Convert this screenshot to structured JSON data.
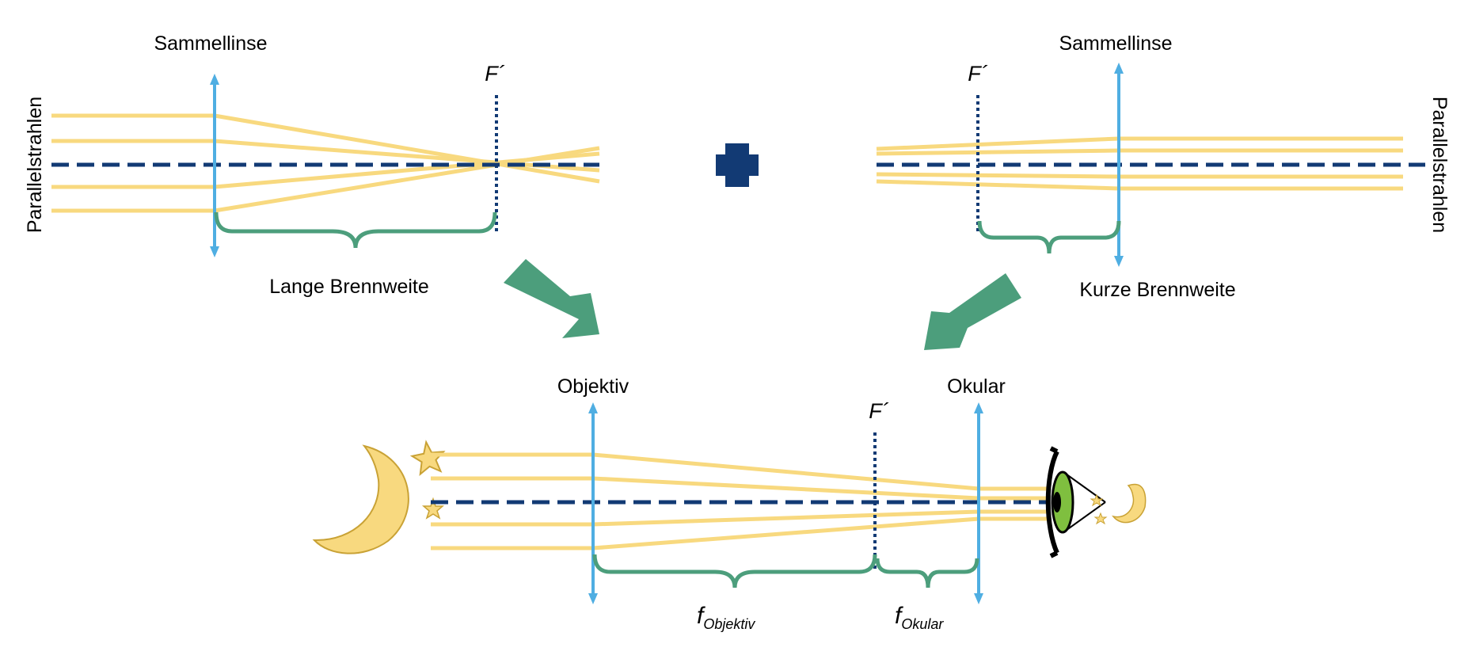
{
  "colors": {
    "ray": "#F8D97F",
    "lens": "#4FAEE2",
    "axis": "#123A74",
    "brace": "#4C9E7C",
    "arrow": "#4C9E7C",
    "plus": "#123A74",
    "moon_fill": "#F8D97F",
    "moon_stroke": "#C9A235",
    "iris": "#7FBF3F"
  },
  "icons": {
    "plus": "plus-icon",
    "moon": "moon-icon",
    "star": "star-icon",
    "eye": "eye-icon",
    "arrow": "arrow-icon"
  },
  "top_left": {
    "lens_label": "Sammellinse",
    "focal_label": "F´",
    "rays_label": "Parallelstrahlen",
    "brace_label": "Lange Brennweite"
  },
  "top_right": {
    "lens_label": "Sammellinse",
    "focal_label": "F´",
    "rays_label": "Parallelstrahlen",
    "brace_label": "Kurze Brennweite"
  },
  "bottom": {
    "objective_label": "Objektiv",
    "eyepiece_label": "Okular",
    "focal_label": "F´",
    "f_symbol": "f",
    "f_objective_sub": "Objektiv",
    "f_eyepiece_sub": "Okular"
  }
}
